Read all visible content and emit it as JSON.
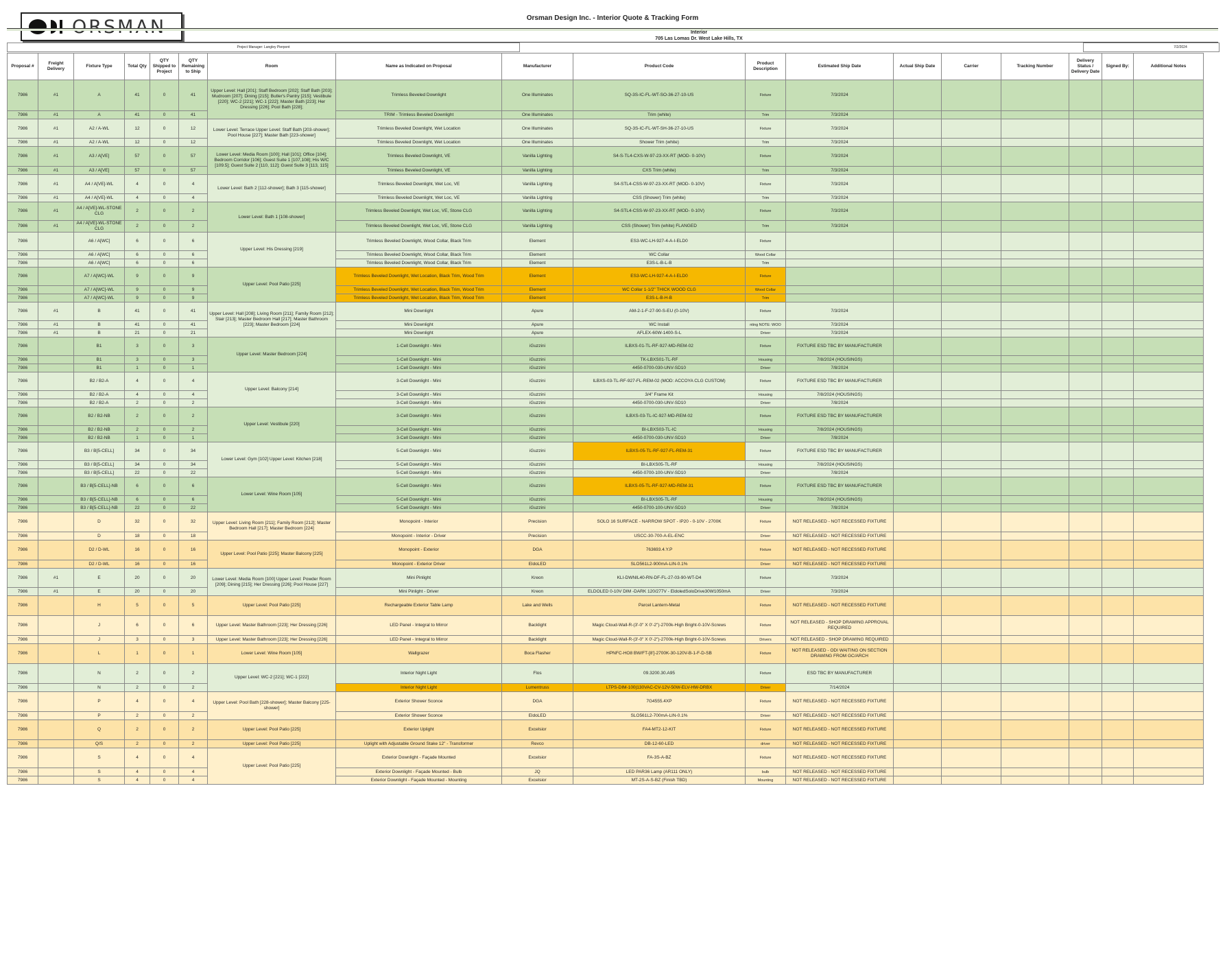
{
  "header": {
    "logo_text": "ORSMAN",
    "title": "Orsman Design Inc. - Interior Quote & Tracking Form",
    "section": "Interior",
    "address": "705 Las Lomas Dr. West Lake Hills, TX",
    "project_manager": "Project Manager: Langley Pierpont",
    "date": "7/2/2024"
  },
  "columns": [
    "Proposal #",
    "Freight Delivery",
    "Fixture Type",
    "Total Qty",
    "QTY Shipped to Project",
    "QTY Remaining to Ship",
    "Room",
    "Name as Indicated on Proposal",
    "Manufacturer",
    "Product Code",
    "Product Description",
    "Estimated Ship Date",
    "Actual Ship Date",
    "Carrier",
    "Tracking Number",
    "Delivery Status / Delivery Date",
    "Signed By:",
    "Additional Notes"
  ],
  "rows": [
    [
      "7986",
      "#1",
      "A",
      "41",
      "0",
      "41",
      "Upper Level: Hall [201]; Staff Bedroom [202]; Staff Bath [203]; Mudroom [207]; Dining [215]; Butler's Pantry [215]; Vestibule [220]; WC-2 [221]; WC-1 [222]; Master Bath [223]; Her Dressing [226]; Pool Bath [228];",
      "Trimless Beveled Downlight",
      "One Illuminates",
      "SQ-3S-IC-FL-WT-SO-36-27-10-US",
      "Fixture",
      "7/3/2024"
    ],
    [
      "7986",
      "#1",
      "A",
      "41",
      "0",
      "41",
      "",
      "TRIM - Trimless Beveled Downlight",
      "One Illuminates",
      "Trim (white)",
      "Trim",
      "7/3/2024"
    ],
    [
      "7986",
      "#1",
      "A2 / A-WL",
      "12",
      "0",
      "12",
      "Lower Level: Terrace Upper Level: Staff Bath [203-shower]; Pool House [227]; Master Bath [223-shower]",
      "Trimless Beveled Downlight, Wet Location",
      "One Illuminates",
      "SQ-3S-IC-FL-WT-SH-36-27-10-US",
      "Fixture",
      "7/3/2024"
    ],
    [
      "7986",
      "#1",
      "A2 / A-WL",
      "12",
      "0",
      "12",
      "",
      "Trimless Beveled Downlight, Wet Location",
      "One Illuminates",
      "Shower Trim (white)",
      "Trim",
      "7/3/2024"
    ],
    [
      "7986",
      "#1",
      "A3 / A[VE]",
      "57",
      "0",
      "57",
      "Lower Level: Media Room [100]; Hall [101]; Office [104]; Bedroom Corridor [106]; Guest Suite 1 [107,108]; His W/C [109.5]; Guest Suite 2 [110, 112]; Guest Suite 3 [113, 115]",
      "Trimless Beveled Downlight, VE",
      "Vanilla Lighting",
      "S4-S-TL4-CXS-W-97-23-XX-RT (MOD- 0-10V)",
      "Fixture",
      "7/3/2024"
    ],
    [
      "7986",
      "#1",
      "A3 / A[VE]",
      "57",
      "0",
      "57",
      "",
      "Trimless Beveled Downlight, VE",
      "Vanilla Lighting",
      "CXS Trim (white)",
      "Trim",
      "7/3/2024"
    ],
    [
      "7986",
      "#1",
      "A4 / A[VE]-WL",
      "4",
      "0",
      "4",
      "Lower Level: Bath 2 [112-shower]; Bath 3 [115-shower]",
      "Trimless Beveled Downlight, Wet Loc, VE",
      "Vanilla Lighting",
      "S4-STL4-CSS-W-97-23-XX-RT (MOD- 0-10V)",
      "Fixture",
      "7/3/2024"
    ],
    [
      "7986",
      "#1",
      "A4 / A[VE]-WL",
      "4",
      "0",
      "4",
      "",
      "Trimless Beveled Downlight, Wet Loc, VE",
      "Vanilla Lighting",
      "CSS (Shower) Trim (white)",
      "Trim",
      "7/3/2024"
    ],
    [
      "7986",
      "#1",
      "A4 / A[VE]-WL-STONE CLG",
      "2",
      "0",
      "2",
      "Lower Level: Bath 1 [108-shower]",
      "Trimless Beveled Downlight, Wet Loc, VE, Stone CLG",
      "Vanilla Lighting",
      "S4-STL4-CSS-W-97-23-XX-RT (MOD- 0-10V)",
      "Fixture",
      "7/3/2024"
    ],
    [
      "7986",
      "#1",
      "A4 / A[VE]-WL-STONE CLG",
      "2",
      "0",
      "2",
      "",
      "Trimless Beveled Downlight, Wet Loc, VE, Stone CLG",
      "Vanilla Lighting",
      "CSS (Shower) Trim (white) FLANGED",
      "Trim",
      "7/3/2024"
    ],
    [
      "7986",
      "",
      "A6 / A[WC]",
      "6",
      "0",
      "6",
      "Upper Level: His Dressing [219]",
      "Trimless Beveled Downlight, Wood Collar, Black Trim",
      "Element",
      "ES3-WC-LH-927-4-A-I-ELD0",
      "Fixture",
      ""
    ],
    [
      "7986",
      "",
      "A6 / A[WC]",
      "6",
      "0",
      "6",
      "",
      "Trimless Beveled Downlight, Wood Collar, Black Trim",
      "Element",
      "WC Collar",
      "Wood Collar",
      ""
    ],
    [
      "7986",
      "",
      "A6 / A[WC]",
      "6",
      "0",
      "6",
      "",
      "Trimless Beveled Downlight, Wood Collar, Black Trim",
      "Element",
      "E3S-L-B-L-B",
      "Trim",
      ""
    ],
    [
      "7986",
      "",
      "A7 / A[WC]-WL",
      "9",
      "0",
      "9",
      "Upper Level: Pool Patio [225]",
      "Trimless Beveled Downlight, Wet Location, Black Trim, Wood Trim",
      "Element",
      "ES3-WC-LH-927-4-A-I-ELD0",
      "Fixture",
      ""
    ],
    [
      "7986",
      "",
      "A7 / A[WC]-WL",
      "9",
      "0",
      "9",
      "",
      "Trimless Beveled Downlight, Wet Location, Black Trim, Wood Trim",
      "Element",
      "WC Collar 1-1/2\" THICK WOOD CLG",
      "Wood Collar",
      ""
    ],
    [
      "7986",
      "",
      "A7 / A[WC]-WL",
      "9",
      "0",
      "9",
      "",
      "Trimless Beveled Downlight, Wet Location, Black Trim, Wood Trim",
      "Element",
      "E3S-L-B-H-B",
      "Trim",
      ""
    ],
    [
      "7986",
      "#1",
      "B",
      "41",
      "0",
      "41",
      "Upper Level: Hall [208]; Living Room [211]; Family Room [212]; Stair [213]; Master Bedroom Hall [217]; Master Bathroom [223]; Master Bedroom [224]",
      "Mini Downlight",
      "Apure",
      "AM-2-1-F-27-90-S-EU (0-10V)",
      "Fixture",
      "7/3/2024"
    ],
    [
      "7986",
      "#1",
      "B",
      "41",
      "0",
      "41",
      "",
      "Mini Downlight",
      "Apure",
      "WC Install",
      "nting NOTE: WOO",
      "7/3/2024"
    ],
    [
      "7986",
      "#1",
      "B",
      "21",
      "0",
      "21",
      "",
      "Mini Downlight",
      "Apure",
      "AFLEX-60W-1400-S-L",
      "Driver",
      "7/3/2024"
    ],
    [
      "7986",
      "",
      "B1",
      "3",
      "0",
      "3",
      "Upper Level: Master Bedroom [224]",
      "1-Cell Downlight - Mini",
      "iGuzzini",
      "ILBXS-01-TL-RF-927-MD-REM-02",
      "Fixture",
      "FIXTURE ESD TBC BY MANUFACTURER"
    ],
    [
      "7986",
      "",
      "B1",
      "3",
      "0",
      "3",
      "",
      "1-Cell Downlight - Mini",
      "iGuzzini",
      "TK-LBXS01-TL-RF",
      "Housing",
      "7/8/2024 (HOUSINGS)"
    ],
    [
      "7986",
      "",
      "B1",
      "1",
      "0",
      "1",
      "",
      "1-Cell Downlight - Mini",
      "iGuzzini",
      "4450-0700-030-UNV-SD10",
      "Driver",
      "7/8/2024"
    ],
    [
      "7986",
      "",
      "B2 / B2-A",
      "4",
      "0",
      "4",
      "Upper Level: Balcony [214]",
      "3-Cell Downlight - Mini",
      "iGuzzini",
      "ILBXS-03-TL-RF-927-FL-REM-02 (MOD: ACCOYA CLG CUSTOM)",
      "Fixture",
      "FIXTURE ESD TBC BY MANUFACTURER"
    ],
    [
      "7986",
      "",
      "B2 / B2-A",
      "4",
      "0",
      "4",
      "",
      "3-Cell Downlight - Mini",
      "iGuzzini",
      "3/4\" Frame Kit",
      "Housing",
      "7/8/2024 (HOUSINGS)"
    ],
    [
      "7986",
      "",
      "B2 / B2-A",
      "2",
      "0",
      "2",
      "",
      "3-Cell Downlight - Mini",
      "iGuzzini",
      "4450-0700-030-UNV-SD10",
      "Driver",
      "7/8/2024"
    ],
    [
      "7986",
      "",
      "B2 / B2-NB",
      "2",
      "0",
      "2",
      "Upper Level: Vestibule [220]",
      "3-Cell Downlight - Mini",
      "iGuzzini",
      "ILBXS-03-TL-IC-927-MD-REM-02",
      "Fixture",
      "FIXTURE ESD TBC BY MANUFACTURER"
    ],
    [
      "7986",
      "",
      "B2 / B2-NB",
      "2",
      "0",
      "2",
      "",
      "3-Cell Downlight - Mini",
      "iGuzzini",
      "BI-LBXS03-TL-IC",
      "Housing",
      "7/8/2024 (HOUSINGS)"
    ],
    [
      "7986",
      "",
      "B2 / B2-NB",
      "1",
      "0",
      "1",
      "",
      "3-Cell Downlight - Mini",
      "iGuzzini",
      "4450-0700-030-UNV-SD10",
      "Driver",
      "7/8/2024"
    ],
    [
      "7986",
      "",
      "B3 / B[5-CELL]",
      "34",
      "0",
      "34",
      "Lower Level: Gym [102] Upper Level: Kitchen [218]",
      "5-Cell Downlight - Mini",
      "iGuzzini",
      "ILBXS-05-TL-RF-927-FL-REM-31",
      "Fixture",
      "FIXTURE ESD TBC BY MANUFACTURER"
    ],
    [
      "7986",
      "",
      "B3 / B[5-CELL]",
      "34",
      "0",
      "34",
      "",
      "5-Cell Downlight - Mini",
      "iGuzzini",
      "BI-LBXS05-TL-RF",
      "Housing",
      "7/8/2024 (HOUSINGS)"
    ],
    [
      "7986",
      "",
      "B3 / B[5-CELL]",
      "22",
      "0",
      "22",
      "",
      "5-Cell Downlight - Mini",
      "iGuzzini",
      "4450-0700-100-UNV-SD10",
      "Driver",
      "7/8/2024"
    ],
    [
      "7986",
      "",
      "B3 / B[5-CELL]-NB",
      "6",
      "0",
      "6",
      "Lower Level: Wine Room [105]",
      "5-Cell Downlight - Mini",
      "iGuzzini",
      "ILBXS-05-TL-RF-927-MD-REM-31",
      "Fixture",
      "FIXTURE ESD TBC BY MANUFACTURER"
    ],
    [
      "7986",
      "",
      "B3 / B[5-CELL]-NB",
      "6",
      "0",
      "6",
      "",
      "5-Cell Downlight - Mini",
      "iGuzzini",
      "BI-LBXS05-TL-RF",
      "Housing",
      "7/8/2024 (HOUSINGS)"
    ],
    [
      "7986",
      "",
      "B3 / B[5-CELL]-NB",
      "22",
      "0",
      "22",
      "",
      "5-Cell Downlight - Mini",
      "iGuzzini",
      "4450-0700-100-UNV-SD10",
      "Driver",
      "7/8/2024"
    ],
    [
      "7986",
      "",
      "D",
      "32",
      "0",
      "32",
      "Upper Level: Living Room [211]; Family Room [212]; Master Bedroom Hall [217]; Master Bedroom [224]",
      "Monopoint - Interior",
      "Precision",
      "SOLO 16 SURFACE - NARROW SPOT - IP20 - 0-10V - 2700K",
      "Fixture",
      "NOT RELEASED - NOT RECESSED FIXTURE"
    ],
    [
      "7986",
      "",
      "D",
      "18",
      "0",
      "18",
      "",
      "Monopoint - Interior - Driver",
      "Precision",
      "USCC-30-700-A-EL-ENC",
      "Driver",
      "NOT RELEASED - NOT RECESSED FIXTURE"
    ],
    [
      "7986",
      "",
      "D2 / D-WL",
      "16",
      "0",
      "16",
      "Upper Level: Pool Patio [225]; Master Balcony [225]",
      "Monopoint - Exterior",
      "DGA",
      "763693.4.Y.P",
      "Fixture",
      "NOT RELEASED - NOT RECESSED FIXTURE"
    ],
    [
      "7986",
      "",
      "D2 / D-WL",
      "16",
      "0",
      "16",
      "",
      "Monopoint - Exterior Driver",
      "EldoLED",
      "SLO561L2-900mA-LIN-0.1%",
      "Driver",
      "NOT RELEASED - NOT RECESSED FIXTURE"
    ],
    [
      "7986",
      "#1",
      "E",
      "20",
      "0",
      "20",
      "Lower Level: Media Room [100] Upper Level: Powder Room [209]; Dining [215]; Her Dressing [226]; Pool House [227]",
      "Mini Pinlight",
      "Kreon",
      "KLI-DWNIL40-RN-DF-FL-27-03-90-WT-D4",
      "Fixture",
      "7/3/2024"
    ],
    [
      "7986",
      "#1",
      "E",
      "20",
      "0",
      "20",
      "",
      "Mini Pinlight - Driver",
      "Kreon",
      "ELDOLED 0-10V DIM -DARK 120/277V - EldoledSoloDrive30W1050mA",
      "Driver",
      "7/3/2024"
    ],
    [
      "7986",
      "",
      "H",
      "5",
      "0",
      "5",
      "Upper Level: Pool Patio [225]",
      "Rechargeable Exterior Table Lamp",
      "Lake and Wells",
      "Parcel Lantern-Metal",
      "Fixture",
      "NOT RELEASED - NOT RECESSED FIXTURE"
    ],
    [
      "7986",
      "",
      "J",
      "6",
      "0",
      "6",
      "Upper Level: Master Bathroom [223]; Her Dressing [226]",
      "LED Panel - Integral to Mirror",
      "Backlight",
      "Magic Cloud-Wall-R-(3'-0\" X 0'-2\")-2700k-High Bright-0-10V-Screws",
      "Fixture",
      "NOT RELEASED - SHOP DRAWING APPROVAL REQUIRED"
    ],
    [
      "7986",
      "",
      "J",
      "3",
      "0",
      "3",
      "Upper Level: Master Bathroom [223]; Her Dressing [226]",
      "LED Panel - Integral to Mirror",
      "Backlight",
      "Magic Cloud-Wall-R-(3'-0\" X 0'-2\")-2700k-High Bright-0-10V-Screws",
      "Drivers",
      "NOT RELEASED - SHOP DRAWING REQUIRED"
    ],
    [
      "7986",
      "",
      "L",
      "1",
      "0",
      "1",
      "Lower Level: Wine Room [105]",
      "Wallgrazer",
      "Boca Flasher",
      "HPNFC-HO8 BW/FT-[8']-2700K-30-120V-B-1-F-D-SB",
      "Fixture",
      "NOT RELEASED - ODI WAITING ON SECTION DRAWING FROM GC/ARCH"
    ],
    [
      "7986",
      "",
      "N",
      "2",
      "0",
      "2",
      "Upper Level: WC-2 [221]; WC-1 [222]",
      "Interior Night Light",
      "Flos",
      "09.3200.30.A95",
      "Fixture",
      "ESD TBC BY MANUFACTURER"
    ],
    [
      "7986",
      "",
      "N",
      "2",
      "0",
      "2",
      "",
      "Interior Night Light",
      "Lumentruss",
      "LTPS-DIM-100|130VAC-CV-12V-50W-ELV-HW-DRBX",
      "Driver",
      "7/14/2024"
    ],
    [
      "7986",
      "",
      "P",
      "4",
      "0",
      "4",
      "Upper Level: Pool Bath [228-shower]; Master Balcony [225-shower]",
      "Exterior Shower Sconce",
      "DGA",
      "7G4555.4XP",
      "Fixture",
      "NOT RELEASED - NOT RECESSED FIXTURE"
    ],
    [
      "7986",
      "",
      "P",
      "2",
      "0",
      "2",
      "",
      "Exterior Shower Sconce",
      "EldoLED",
      "SLO561L2-700mA-LIN-0.1%",
      "Driver",
      "NOT RELEASED - NOT RECESSED FIXTURE"
    ],
    [
      "7986",
      "",
      "Q",
      "2",
      "0",
      "2",
      "Upper Level: Pool Patio [225]",
      "Exterior Uplight",
      "Excelsior",
      "FA4-MT2-12-KIT",
      "Fixture",
      "NOT RELEASED - NOT RECESSED FIXTURE"
    ],
    [
      "7986",
      "",
      "Q/S",
      "2",
      "0",
      "2",
      "Upper Level: Pool Patio [225]",
      "Uplight with Adjustable Ground Stake 12\" - Transformer",
      "Revco",
      "DB-12-60-LED",
      "driver",
      "NOT RELEASED - NOT RECESSED FIXTURE"
    ],
    [
      "7986",
      "",
      "S",
      "4",
      "0",
      "4",
      "Upper Level: Pool Patio [225]",
      "Exterior Downlight - Façade Mounted",
      "Excelsior",
      "FA-3S-A-BZ",
      "Fixture",
      "NOT RELEASED - NOT RECESSED FIXTURE"
    ],
    [
      "7986",
      "",
      "S",
      "4",
      "0",
      "4",
      "",
      "Exterior Downlight - Façade Mounted - Bulb",
      "JQ",
      "LED PAR36 Lamp (AR111 ONLY)",
      "bulb",
      "NOT RELEASED - NOT RECESSED FIXTURE"
    ],
    [
      "7986",
      "",
      "S",
      "4",
      "0",
      "4",
      "",
      "Exterior Downlight - Façade Mounted - Mounting",
      "Excelsior",
      "MT-2S-A-S-BZ (Finish TBD)",
      "Mounting",
      "NOT RELEASED - NOT RECESSED FIXTURE"
    ]
  ],
  "colors": {
    "green": "#c6dfb6",
    "light_green": "#e2eed7",
    "yellow": "#fde3a8",
    "cream": "#fff0cb",
    "highlight": "#f6b800"
  }
}
